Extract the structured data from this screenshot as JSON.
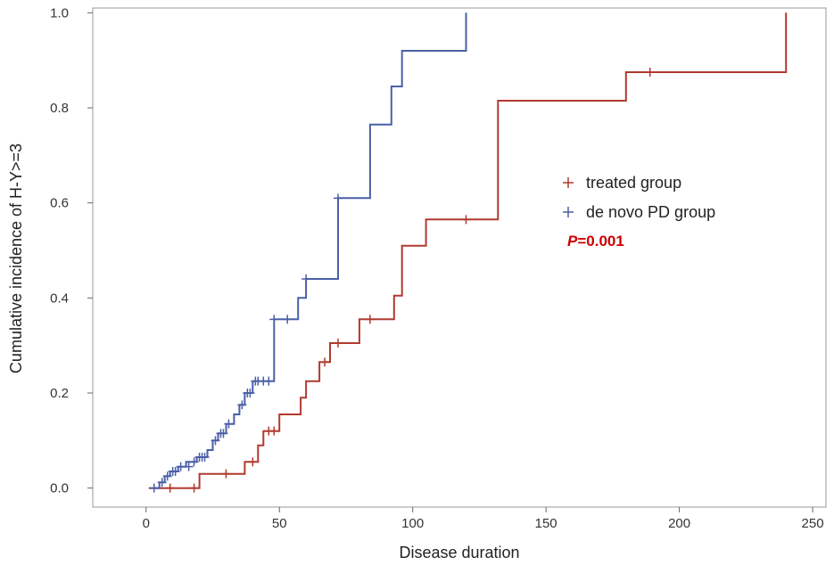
{
  "chart_data": {
    "type": "line",
    "title": "",
    "xlabel": "Disease duration",
    "ylabel": "Cumulative incidence of H-Y>=3",
    "xlim": [
      -20,
      255
    ],
    "ylim": [
      -0.04,
      1.01
    ],
    "xticks": [
      0,
      50,
      100,
      150,
      200,
      250
    ],
    "yticks": [
      "0.0",
      "0.2",
      "0.4",
      "0.6",
      "0.8",
      "1.0"
    ],
    "grid": false,
    "legend_position": "right-middle",
    "annotation": {
      "p_label": "P",
      "p_value": "=0.001"
    },
    "series": [
      {
        "name": "treated group",
        "color": "#b03a2e",
        "steps": [
          [
            1,
            0
          ],
          [
            20,
            0
          ],
          [
            20,
            0.03
          ],
          [
            37,
            0.03
          ],
          [
            37,
            0.055
          ],
          [
            42,
            0.055
          ],
          [
            42,
            0.09
          ],
          [
            44,
            0.09
          ],
          [
            44,
            0.12
          ],
          [
            50,
            0.12
          ],
          [
            50,
            0.155
          ],
          [
            58,
            0.155
          ],
          [
            58,
            0.19
          ],
          [
            60,
            0.19
          ],
          [
            60,
            0.225
          ],
          [
            65,
            0.225
          ],
          [
            65,
            0.265
          ],
          [
            69,
            0.265
          ],
          [
            69,
            0.305
          ],
          [
            80,
            0.305
          ],
          [
            80,
            0.355
          ],
          [
            93,
            0.355
          ],
          [
            93,
            0.405
          ],
          [
            96,
            0.405
          ],
          [
            96,
            0.51
          ],
          [
            105,
            0.51
          ],
          [
            105,
            0.565
          ],
          [
            132,
            0.565
          ],
          [
            132,
            0.815
          ],
          [
            180,
            0.815
          ],
          [
            180,
            0.875
          ],
          [
            240,
            0.875
          ],
          [
            240,
            1.0
          ]
        ],
        "censored": [
          [
            9,
            0
          ],
          [
            18,
            0
          ],
          [
            30,
            0.03
          ],
          [
            40,
            0.055
          ],
          [
            46,
            0.12
          ],
          [
            48,
            0.12
          ],
          [
            67,
            0.265
          ],
          [
            72,
            0.305
          ],
          [
            84,
            0.355
          ],
          [
            120,
            0.565
          ],
          [
            189,
            0.875
          ]
        ]
      },
      {
        "name": "de novo PD group",
        "color": "#4a5fa8",
        "steps": [
          [
            3,
            0
          ],
          [
            5,
            0
          ],
          [
            5,
            0.012
          ],
          [
            7,
            0.012
          ],
          [
            7,
            0.025
          ],
          [
            9,
            0.025
          ],
          [
            9,
            0.035
          ],
          [
            12,
            0.035
          ],
          [
            12,
            0.045
          ],
          [
            15,
            0.045
          ],
          [
            15,
            0.055
          ],
          [
            19,
            0.055
          ],
          [
            19,
            0.065
          ],
          [
            23,
            0.065
          ],
          [
            23,
            0.08
          ],
          [
            25,
            0.08
          ],
          [
            25,
            0.1
          ],
          [
            27,
            0.1
          ],
          [
            27,
            0.115
          ],
          [
            30,
            0.115
          ],
          [
            30,
            0.135
          ],
          [
            33,
            0.135
          ],
          [
            33,
            0.155
          ],
          [
            35,
            0.155
          ],
          [
            35,
            0.175
          ],
          [
            37,
            0.175
          ],
          [
            37,
            0.2
          ],
          [
            40,
            0.2
          ],
          [
            40,
            0.225
          ],
          [
            48,
            0.225
          ],
          [
            48,
            0.355
          ],
          [
            57,
            0.355
          ],
          [
            57,
            0.4
          ],
          [
            60,
            0.4
          ],
          [
            60,
            0.44
          ],
          [
            72,
            0.44
          ],
          [
            72,
            0.61
          ],
          [
            84,
            0.61
          ],
          [
            84,
            0.765
          ],
          [
            92,
            0.765
          ],
          [
            92,
            0.845
          ],
          [
            96,
            0.845
          ],
          [
            96,
            0.92
          ],
          [
            120,
            0.92
          ],
          [
            120,
            1.0
          ]
        ],
        "censored": [
          [
            3,
            0
          ],
          [
            6,
            0.012
          ],
          [
            8,
            0.025
          ],
          [
            10,
            0.035
          ],
          [
            11,
            0.035
          ],
          [
            13,
            0.045
          ],
          [
            16,
            0.045
          ],
          [
            18,
            0.055
          ],
          [
            20,
            0.065
          ],
          [
            21,
            0.065
          ],
          [
            22,
            0.065
          ],
          [
            26,
            0.1
          ],
          [
            28,
            0.115
          ],
          [
            29,
            0.115
          ],
          [
            31,
            0.135
          ],
          [
            36,
            0.175
          ],
          [
            38,
            0.2
          ],
          [
            39,
            0.2
          ],
          [
            41,
            0.225
          ],
          [
            42,
            0.225
          ],
          [
            44,
            0.225
          ],
          [
            46,
            0.225
          ],
          [
            48,
            0.355
          ],
          [
            53,
            0.355
          ],
          [
            60,
            0.44
          ],
          [
            72,
            0.61
          ]
        ]
      }
    ]
  }
}
